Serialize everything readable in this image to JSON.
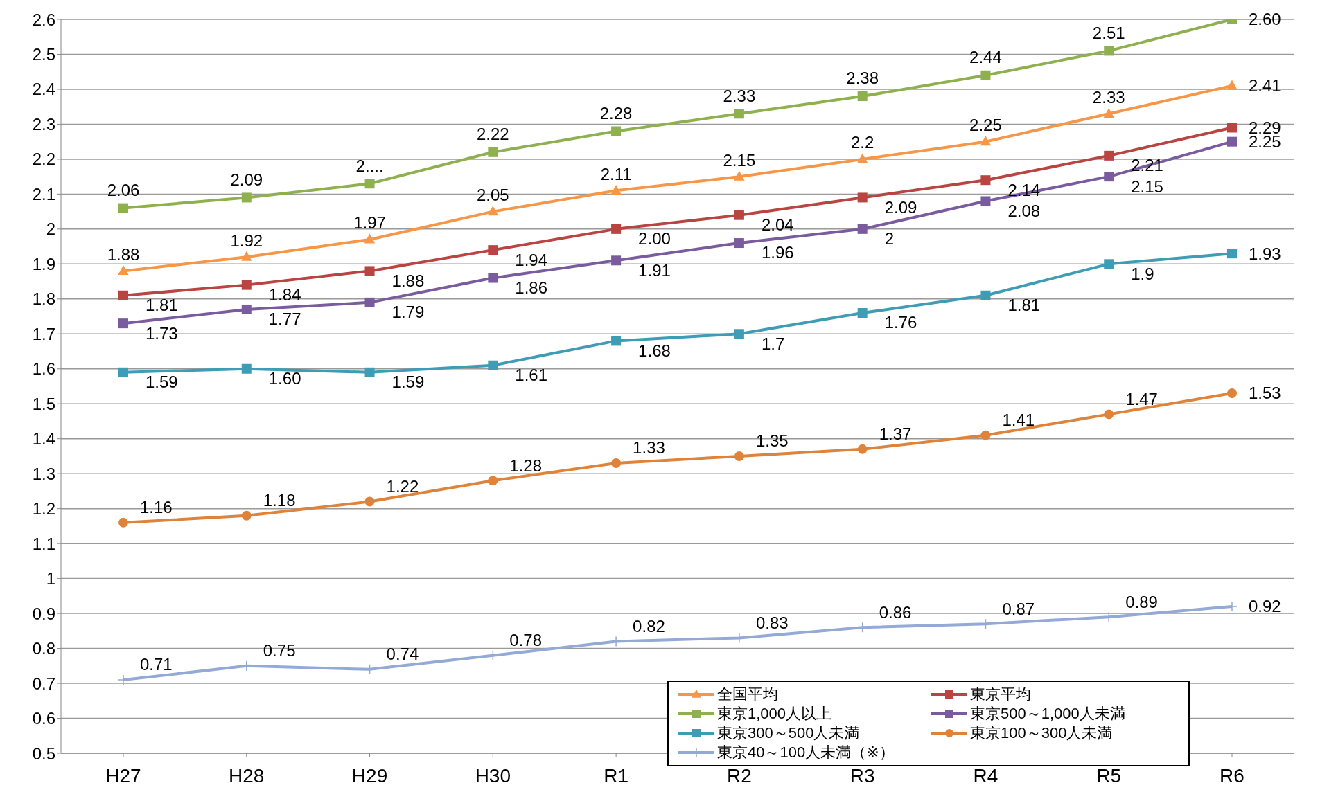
{
  "chart_data": {
    "type": "line",
    "categories": [
      "H27",
      "H28",
      "H29",
      "H30",
      "R1",
      "R2",
      "R3",
      "R4",
      "R5",
      "R6"
    ],
    "ylim": [
      0.5,
      2.6
    ],
    "yticks": [
      0.5,
      0.6,
      0.7,
      0.8,
      0.9,
      1,
      1.1,
      1.2,
      1.3,
      1.4,
      1.5,
      1.6,
      1.7,
      1.8,
      1.9,
      2,
      2.1,
      2.2,
      2.3,
      2.4,
      2.5,
      2.6
    ],
    "grid": "y",
    "legend": "bottom right",
    "line_style": "solid",
    "series": [
      {
        "name": "全国平均",
        "color": "#f79646",
        "marker": "triangle",
        "values": [
          1.88,
          1.92,
          1.97,
          2.05,
          2.11,
          2.15,
          2.2,
          2.25,
          2.33,
          2.41
        ],
        "value_labels": [
          "1.88",
          "1.92",
          "1.97",
          "2.05",
          "2.11",
          "2.15",
          "2.2",
          "2.25",
          "2.33",
          "2.41"
        ]
      },
      {
        "name": "東京平均",
        "color": "#b94441",
        "marker": "square",
        "values": [
          1.81,
          1.84,
          1.88,
          1.94,
          2.0,
          2.04,
          2.09,
          2.14,
          2.21,
          2.29
        ],
        "value_labels": [
          "1.81",
          "1.84",
          "1.88",
          "1.94",
          "2.00",
          "2.04",
          "2.09",
          "2.14",
          "2.21",
          "2.29"
        ]
      },
      {
        "name": "東京1,000人以上",
        "color": "#8fb04e",
        "marker": "square",
        "values": [
          2.06,
          2.09,
          2.13,
          2.22,
          2.28,
          2.33,
          2.38,
          2.44,
          2.51,
          2.6
        ],
        "value_labels": [
          "2.06",
          "2.09",
          "2....",
          "2.22",
          "2.28",
          "2.33",
          "2.38",
          "2.44",
          "2.51",
          "2.60"
        ]
      },
      {
        "name": "東京500～1,000人未満",
        "color": "#7a5c9e",
        "marker": "square",
        "values": [
          1.73,
          1.77,
          1.79,
          1.86,
          1.91,
          1.96,
          2,
          2.08,
          2.15,
          2.25
        ],
        "value_labels": [
          "1.73",
          "1.77",
          "1.79",
          "1.86",
          "1.91",
          "1.96",
          "2",
          "2.08",
          "2.15",
          "2.25"
        ]
      },
      {
        "name": "東京300～500人未満",
        "color": "#3f9cb5",
        "marker": "square",
        "values": [
          1.59,
          1.6,
          1.59,
          1.61,
          1.68,
          1.7,
          1.76,
          1.81,
          1.9,
          1.93
        ],
        "value_labels": [
          "1.59",
          "1.60",
          "1.59",
          "1.61",
          "1.68",
          "1.7",
          "1.76",
          "1.81",
          "1.9",
          "1.93"
        ]
      },
      {
        "name": "東京100～300人未満",
        "color": "#e0833a",
        "marker": "circle",
        "values": [
          1.16,
          1.18,
          1.22,
          1.28,
          1.33,
          1.35,
          1.37,
          1.41,
          1.47,
          1.53
        ],
        "value_labels": [
          "1.16",
          "1.18",
          "1.22",
          "1.28",
          "1.33",
          "1.35",
          "1.37",
          "1.41",
          "1.47",
          "1.53"
        ]
      },
      {
        "name": "東京40～100人未満（※）",
        "color": "#93a9d6",
        "marker": "cross",
        "values": [
          0.71,
          0.75,
          0.74,
          0.78,
          0.82,
          0.83,
          0.86,
          0.87,
          0.89,
          0.92
        ],
        "value_labels": [
          "0.71",
          "0.75",
          "0.74",
          "0.78",
          "0.82",
          "0.83",
          "0.86",
          "0.87",
          "0.89",
          "0.92"
        ]
      }
    ]
  }
}
